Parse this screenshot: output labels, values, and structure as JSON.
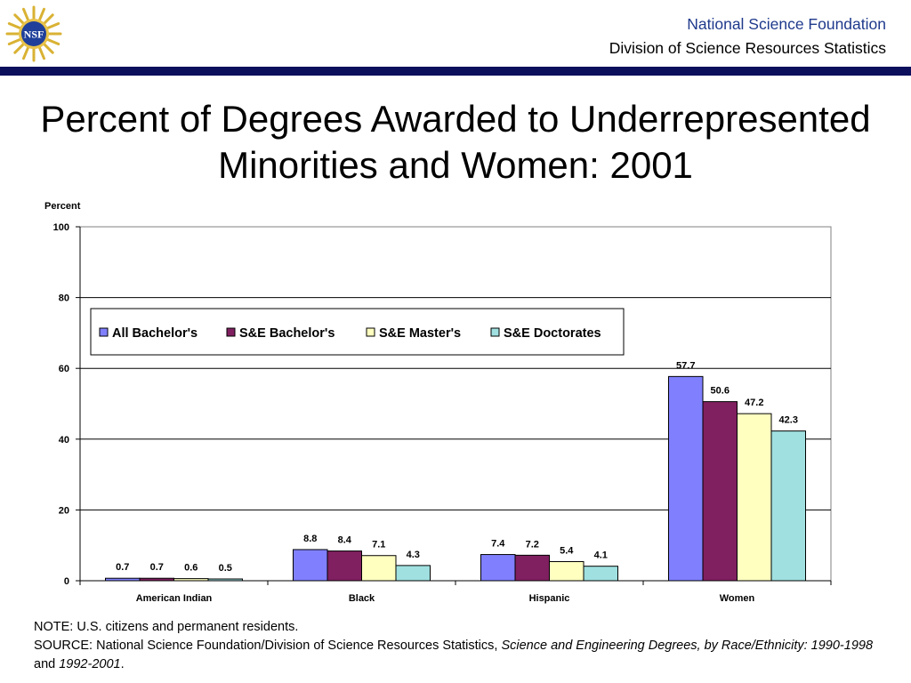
{
  "header": {
    "org_name": "National Science Foundation",
    "division": "Division of Science Resources Statistics",
    "logo_text": "NSF"
  },
  "chart_data": {
    "type": "bar",
    "title": "Percent of Degrees Awarded to Underrepresented Minorities and Women: 2001",
    "ylabel": "Percent",
    "xlabel": "",
    "ylim": [
      0,
      100
    ],
    "yticks": [
      0,
      20,
      40,
      60,
      80,
      100
    ],
    "categories": [
      "American Indian",
      "Black",
      "Hispanic",
      "Women"
    ],
    "series": [
      {
        "name": "All Bachelor's",
        "color": "#8080ff",
        "values": [
          0.7,
          8.8,
          7.4,
          57.7
        ]
      },
      {
        "name": "S&E Bachelor's",
        "color": "#802060",
        "values": [
          0.7,
          8.4,
          7.2,
          50.6
        ]
      },
      {
        "name": "S&E Master's",
        "color": "#ffffc0",
        "values": [
          0.6,
          7.1,
          5.4,
          47.2
        ]
      },
      {
        "name": "S&E Doctorates",
        "color": "#a0e0e0",
        "values": [
          0.5,
          4.3,
          4.1,
          42.3
        ]
      }
    ],
    "grid": true,
    "legend": "top, inside plot"
  },
  "notes": {
    "note": "NOTE:  U.S. citizens and permanent residents.",
    "source_prefix": "SOURCE:  National Science Foundation/Division of Science Resources Statistics, ",
    "source_title1": "Science and Engineering Degrees, by Race/Ethnicity: 1990-1998",
    "source_and": " and ",
    "source_title2": "1992-2001",
    "source_end": "."
  }
}
